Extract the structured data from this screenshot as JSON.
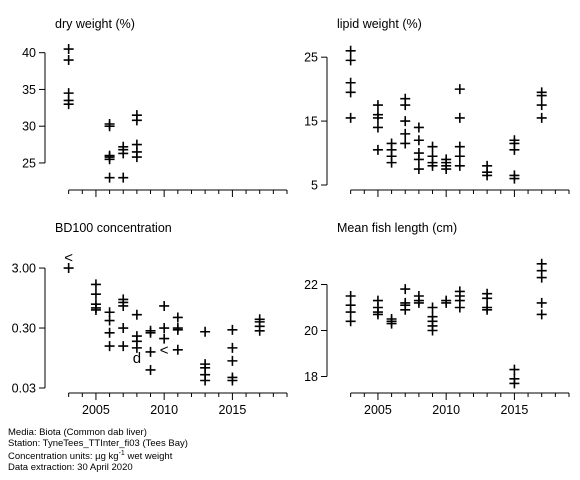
{
  "chart_data": [
    {
      "type": "scatter",
      "title": "dry weight (%)",
      "marker": "+",
      "xlim": [
        2002,
        2019
      ],
      "ylim": [
        22,
        42
      ],
      "yscale": "linear",
      "yticks": [
        25,
        30,
        35,
        40
      ],
      "ytick_labels": [
        "25",
        "30",
        "35",
        "40"
      ],
      "xticks": [
        2005,
        2010,
        2015
      ],
      "xtick_labels": [
        "",
        "",
        ""
      ],
      "points": [
        {
          "x": 2003,
          "y": 40.5
        },
        {
          "x": 2003,
          "y": 39
        },
        {
          "x": 2003,
          "y": 34.5
        },
        {
          "x": 2003,
          "y": 33.5
        },
        {
          "x": 2003,
          "y": 33
        },
        {
          "x": 2006,
          "y": 30.3
        },
        {
          "x": 2006,
          "y": 30
        },
        {
          "x": 2006,
          "y": 26
        },
        {
          "x": 2006,
          "y": 25.8
        },
        {
          "x": 2006,
          "y": 25.5
        },
        {
          "x": 2006,
          "y": 23
        },
        {
          "x": 2007,
          "y": 27.2
        },
        {
          "x": 2007,
          "y": 26.8
        },
        {
          "x": 2007,
          "y": 26.3
        },
        {
          "x": 2007,
          "y": 23
        },
        {
          "x": 2008,
          "y": 31.5
        },
        {
          "x": 2008,
          "y": 30.8
        },
        {
          "x": 2008,
          "y": 27.5
        },
        {
          "x": 2008,
          "y": 26.5
        },
        {
          "x": 2008,
          "y": 25.8
        }
      ],
      "symbols": []
    },
    {
      "type": "scatter",
      "title": "lipid weight (%)",
      "marker": "+",
      "xlim": [
        2002,
        2019
      ],
      "ylim": [
        5,
        28
      ],
      "yscale": "linear",
      "yticks": [
        5,
        15,
        25
      ],
      "ytick_labels": [
        "5",
        "15",
        "25"
      ],
      "xticks": [
        2005,
        2010,
        2015
      ],
      "xtick_labels": [
        "",
        "",
        ""
      ],
      "points": [
        {
          "x": 2003,
          "y": 26
        },
        {
          "x": 2003,
          "y": 24.5
        },
        {
          "x": 2003,
          "y": 21
        },
        {
          "x": 2003,
          "y": 19.5
        },
        {
          "x": 2003,
          "y": 15.5
        },
        {
          "x": 2005,
          "y": 17.5
        },
        {
          "x": 2005,
          "y": 16
        },
        {
          "x": 2005,
          "y": 15.5
        },
        {
          "x": 2005,
          "y": 14
        },
        {
          "x": 2005,
          "y": 10.5
        },
        {
          "x": 2006,
          "y": 11.5
        },
        {
          "x": 2006,
          "y": 10.5
        },
        {
          "x": 2006,
          "y": 9.5
        },
        {
          "x": 2006,
          "y": 8.5
        },
        {
          "x": 2007,
          "y": 18.5
        },
        {
          "x": 2007,
          "y": 17.5
        },
        {
          "x": 2007,
          "y": 15
        },
        {
          "x": 2007,
          "y": 13
        },
        {
          "x": 2007,
          "y": 11.5
        },
        {
          "x": 2008,
          "y": 14
        },
        {
          "x": 2008,
          "y": 12
        },
        {
          "x": 2008,
          "y": 10
        },
        {
          "x": 2008,
          "y": 9
        },
        {
          "x": 2008,
          "y": 7.5
        },
        {
          "x": 2009,
          "y": 11
        },
        {
          "x": 2009,
          "y": 9.5
        },
        {
          "x": 2009,
          "y": 8.5
        },
        {
          "x": 2009,
          "y": 8
        },
        {
          "x": 2010,
          "y": 9
        },
        {
          "x": 2010,
          "y": 8.5
        },
        {
          "x": 2010,
          "y": 8
        },
        {
          "x": 2010,
          "y": 7.5
        },
        {
          "x": 2011,
          "y": 20
        },
        {
          "x": 2011,
          "y": 15.5
        },
        {
          "x": 2011,
          "y": 11
        },
        {
          "x": 2011,
          "y": 9.5
        },
        {
          "x": 2011,
          "y": 8
        },
        {
          "x": 2013,
          "y": 8
        },
        {
          "x": 2013,
          "y": 7
        },
        {
          "x": 2013,
          "y": 6.5
        },
        {
          "x": 2015,
          "y": 12
        },
        {
          "x": 2015,
          "y": 11.5
        },
        {
          "x": 2015,
          "y": 10.5
        },
        {
          "x": 2015,
          "y": 6.5
        },
        {
          "x": 2015,
          "y": 6
        },
        {
          "x": 2017,
          "y": 19.5
        },
        {
          "x": 2017,
          "y": 19
        },
        {
          "x": 2017,
          "y": 17.5
        },
        {
          "x": 2017,
          "y": 15.5
        }
      ],
      "symbols": []
    },
    {
      "type": "scatter",
      "title": "BD100 concentration",
      "marker": "+",
      "xlim": [
        2002,
        2019
      ],
      "ylim": [
        0.03,
        6
      ],
      "yscale": "log",
      "yticks": [
        0.03,
        0.3,
        3
      ],
      "ytick_labels": [
        "0.03",
        "0.30",
        "3.00"
      ],
      "xticks": [
        2005,
        2010,
        2015
      ],
      "xtick_labels": [
        "2005",
        "2010",
        "2015"
      ],
      "points": [
        {
          "x": 2003,
          "y": 3.0
        },
        {
          "x": 2005,
          "y": 1.6
        },
        {
          "x": 2005,
          "y": 1.1
        },
        {
          "x": 2005,
          "y": 0.75
        },
        {
          "x": 2005,
          "y": 0.65
        },
        {
          "x": 2005,
          "y": 0.6
        },
        {
          "x": 2006,
          "y": 0.55
        },
        {
          "x": 2006,
          "y": 0.4
        },
        {
          "x": 2006,
          "y": 0.25
        },
        {
          "x": 2006,
          "y": 0.15
        },
        {
          "x": 2007,
          "y": 0.9
        },
        {
          "x": 2007,
          "y": 0.8
        },
        {
          "x": 2007,
          "y": 0.7
        },
        {
          "x": 2007,
          "y": 0.3
        },
        {
          "x": 2007,
          "y": 0.15
        },
        {
          "x": 2008,
          "y": 0.5
        },
        {
          "x": 2008,
          "y": 0.22
        },
        {
          "x": 2008,
          "y": 0.18
        },
        {
          "x": 2008,
          "y": 0.14
        },
        {
          "x": 2009,
          "y": 0.27
        },
        {
          "x": 2009,
          "y": 0.25
        },
        {
          "x": 2009,
          "y": 0.12
        },
        {
          "x": 2009,
          "y": 0.06
        },
        {
          "x": 2010,
          "y": 0.7
        },
        {
          "x": 2010,
          "y": 0.3
        },
        {
          "x": 2010,
          "y": 0.2
        },
        {
          "x": 2011,
          "y": 0.45
        },
        {
          "x": 2011,
          "y": 0.3
        },
        {
          "x": 2011,
          "y": 0.28
        },
        {
          "x": 2011,
          "y": 0.13
        },
        {
          "x": 2013,
          "y": 0.26
        },
        {
          "x": 2013,
          "y": 0.075
        },
        {
          "x": 2013,
          "y": 0.065
        },
        {
          "x": 2013,
          "y": 0.05
        },
        {
          "x": 2013,
          "y": 0.04
        },
        {
          "x": 2015,
          "y": 0.28
        },
        {
          "x": 2015,
          "y": 0.14
        },
        {
          "x": 2015,
          "y": 0.085
        },
        {
          "x": 2015,
          "y": 0.045
        },
        {
          "x": 2015,
          "y": 0.04
        },
        {
          "x": 2017,
          "y": 0.42
        },
        {
          "x": 2017,
          "y": 0.38
        },
        {
          "x": 2017,
          "y": 0.32
        },
        {
          "x": 2017,
          "y": 0.27
        }
      ],
      "symbols": [
        {
          "x": 2003,
          "y": 4.5,
          "label": "<"
        },
        {
          "x": 2010,
          "y": 0.13,
          "label": "<"
        },
        {
          "x": 2008,
          "y": 0.095,
          "label": "d"
        }
      ]
    },
    {
      "type": "scatter",
      "title": "Mean fish length (cm)",
      "marker": "+",
      "xlim": [
        2002,
        2019
      ],
      "ylim": [
        17.5,
        23.5
      ],
      "yscale": "linear",
      "yticks": [
        18,
        20,
        22
      ],
      "ytick_labels": [
        "18",
        "20",
        "22"
      ],
      "xticks": [
        2005,
        2010,
        2015
      ],
      "xtick_labels": [
        "2005",
        "2010",
        "2015"
      ],
      "points": [
        {
          "x": 2003,
          "y": 21.5
        },
        {
          "x": 2003,
          "y": 21.1
        },
        {
          "x": 2003,
          "y": 20.8
        },
        {
          "x": 2003,
          "y": 20.4
        },
        {
          "x": 2005,
          "y": 21.3
        },
        {
          "x": 2005,
          "y": 21.0
        },
        {
          "x": 2005,
          "y": 20.8
        },
        {
          "x": 2005,
          "y": 20.7
        },
        {
          "x": 2006,
          "y": 20.5
        },
        {
          "x": 2006,
          "y": 20.4
        },
        {
          "x": 2006,
          "y": 20.3
        },
        {
          "x": 2007,
          "y": 21.8
        },
        {
          "x": 2007,
          "y": 21.2
        },
        {
          "x": 2007,
          "y": 21.1
        },
        {
          "x": 2007,
          "y": 20.9
        },
        {
          "x": 2008,
          "y": 21.5
        },
        {
          "x": 2008,
          "y": 21.3
        },
        {
          "x": 2008,
          "y": 21.2
        },
        {
          "x": 2009,
          "y": 21.0
        },
        {
          "x": 2009,
          "y": 20.6
        },
        {
          "x": 2009,
          "y": 20.4
        },
        {
          "x": 2009,
          "y": 20.2
        },
        {
          "x": 2009,
          "y": 20.0
        },
        {
          "x": 2010,
          "y": 21.3
        },
        {
          "x": 2010,
          "y": 21.2
        },
        {
          "x": 2011,
          "y": 21.7
        },
        {
          "x": 2011,
          "y": 21.5
        },
        {
          "x": 2011,
          "y": 21.3
        },
        {
          "x": 2011,
          "y": 21.0
        },
        {
          "x": 2013,
          "y": 21.6
        },
        {
          "x": 2013,
          "y": 21.4
        },
        {
          "x": 2013,
          "y": 21.0
        },
        {
          "x": 2013,
          "y": 20.9
        },
        {
          "x": 2015,
          "y": 18.3
        },
        {
          "x": 2015,
          "y": 17.9
        },
        {
          "x": 2015,
          "y": 17.7
        },
        {
          "x": 2017,
          "y": 22.9
        },
        {
          "x": 2017,
          "y": 22.6
        },
        {
          "x": 2017,
          "y": 22.3
        },
        {
          "x": 2017,
          "y": 21.2
        },
        {
          "x": 2017,
          "y": 20.7
        }
      ],
      "symbols": []
    }
  ],
  "caption": {
    "media": "Media: Biota (Common dab liver)",
    "station": "Station: TyneTees_TTInter_fi03 (Tees Bay)",
    "units_prefix": "Concentration units:  µg kg",
    "units_exp": "-1",
    "units_suffix": " wet weight",
    "extraction": "Data extraction: 30 April 2020"
  }
}
